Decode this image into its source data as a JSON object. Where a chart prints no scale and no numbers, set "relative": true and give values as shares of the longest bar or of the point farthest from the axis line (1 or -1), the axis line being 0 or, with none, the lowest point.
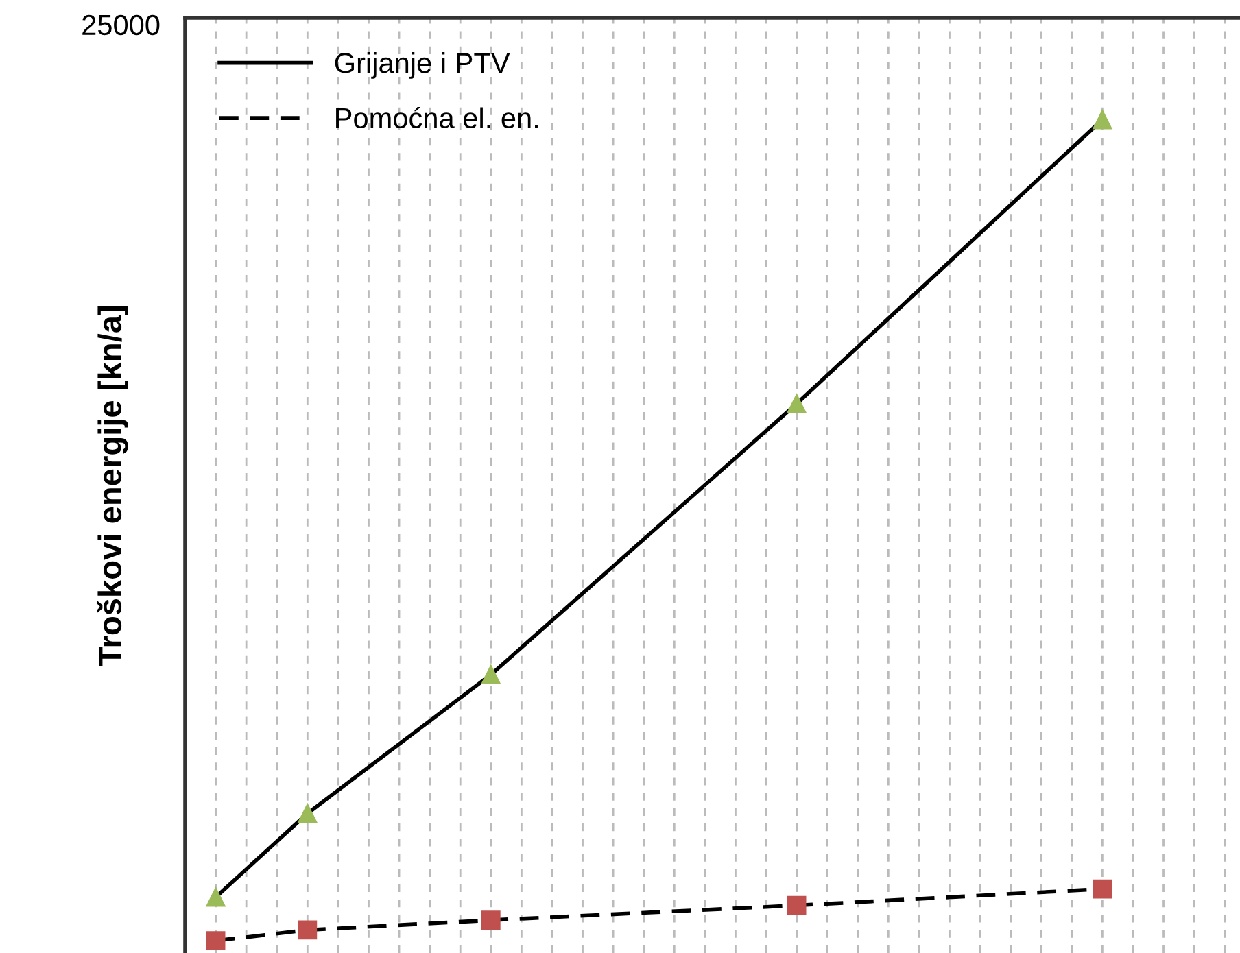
{
  "chart_data": {
    "type": "line",
    "ylabel": "Troškovi energije [kn/a]",
    "relative": true,
    "grid": "x",
    "legend": "top left",
    "annotations": [
      "25000"
    ],
    "categories": [
      null,
      null,
      null,
      null,
      null,
      null,
      null,
      null,
      null,
      null,
      null,
      null,
      null,
      null,
      null,
      null,
      null,
      null,
      null,
      null,
      null,
      null,
      null,
      null,
      null,
      null,
      null,
      null,
      null,
      null,
      null,
      null,
      null,
      null
    ],
    "series": [
      {
        "name": "Grijanje i PTV",
        "color": "#000000",
        "colors": [
          "#9bbb59",
          null,
          null,
          "#9bbb59",
          null,
          null,
          null,
          null,
          null,
          "#9bbb59",
          null,
          null,
          null,
          null,
          null,
          null,
          null,
          null,
          null,
          "#9bbb59",
          null,
          null,
          null,
          null,
          null,
          null,
          null,
          null,
          null,
          "#9bbb59",
          null,
          null,
          null,
          null
        ],
        "marker": "triangle",
        "line_style": "solid",
        "values": [
          0.053,
          null,
          null,
          0.155,
          null,
          null,
          null,
          null,
          null,
          0.324,
          null,
          null,
          null,
          null,
          null,
          null,
          null,
          null,
          null,
          0.654,
          null,
          null,
          null,
          null,
          null,
          null,
          null,
          null,
          null,
          1.0,
          null,
          null,
          null,
          null
        ]
      },
      {
        "name": "Pomoćna el. en.",
        "color": "#000000",
        "colors": [
          "#c0504d",
          null,
          null,
          "#c0504d",
          null,
          null,
          null,
          null,
          null,
          "#c0504d",
          null,
          null,
          null,
          null,
          null,
          null,
          null,
          null,
          null,
          "#c0504d",
          null,
          null,
          null,
          null,
          null,
          null,
          null,
          null,
          null,
          "#c0504d",
          null,
          null,
          null,
          null
        ],
        "marker": "square",
        "line_style": "dashed",
        "values": [
          0.0,
          null,
          null,
          0.013,
          null,
          null,
          null,
          null,
          null,
          0.025,
          null,
          null,
          null,
          null,
          null,
          null,
          null,
          null,
          null,
          0.043,
          null,
          null,
          null,
          null,
          null,
          null,
          null,
          null,
          null,
          0.063,
          null,
          null,
          null,
          null
        ]
      }
    ]
  }
}
